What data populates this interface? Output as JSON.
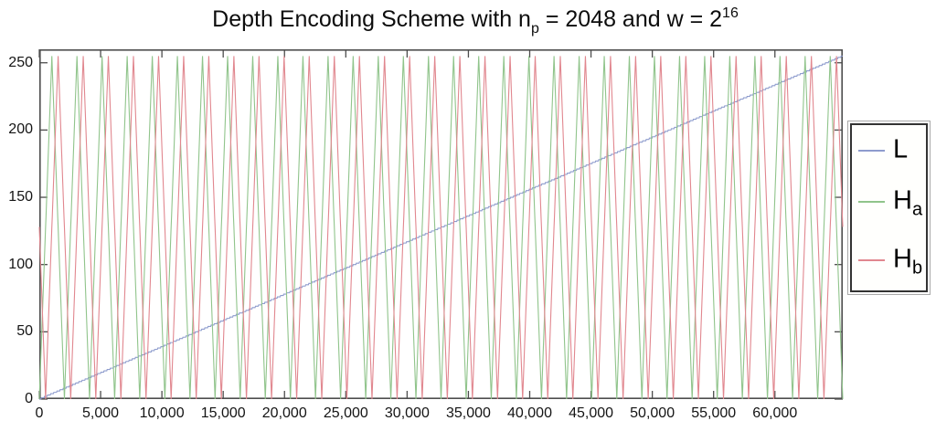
{
  "figure": {
    "title": {
      "pre": "Depth Encoding Scheme with n",
      "sub": "p",
      "mid": " = 2048 and w = 2",
      "sup": "16"
    }
  },
  "chart_data": {
    "type": "line",
    "title": "Depth Encoding Scheme with n_p = 2048 and w = 2^16",
    "xlabel": "",
    "ylabel": "",
    "xlim": [
      0,
      65535
    ],
    "ylim": [
      0,
      260
    ],
    "grid": false,
    "x_ticks": {
      "values": [
        0,
        5000,
        10000,
        15000,
        20000,
        25000,
        30000,
        35000,
        40000,
        45000,
        50000,
        55000,
        60000
      ],
      "labels": [
        "0",
        "5,000",
        "10,000",
        "15,000",
        "20,000",
        "25,000",
        "30,000",
        "35,000",
        "40,000",
        "45,000",
        "50,000",
        "55,000",
        "60,000"
      ]
    },
    "y_ticks": {
      "values": [
        0,
        50,
        100,
        150,
        200,
        250
      ],
      "labels": [
        "0",
        "50",
        "100",
        "150",
        "200",
        "250"
      ]
    },
    "series": [
      {
        "name": "L",
        "color": "#8e9ccd",
        "type": "linear-ramp",
        "description": "linear ramp, 8-bit quantized: L(d) = round(255*d/65535)",
        "min": 0,
        "max": 255
      },
      {
        "name": "Ha",
        "color": "#90c48b",
        "type": "triangle",
        "description": "triangle wave, period 2048, peaks at d = 1024 + 2048k, values 0-255",
        "period": 2048,
        "phase_shift": 0,
        "min": 0,
        "max": 255
      },
      {
        "name": "Hb",
        "color": "#e1878f",
        "type": "triangle",
        "description": "triangle wave, period 2048, shifted right by 512 (quarter period), values 0-255",
        "period": 2048,
        "phase_shift": 512,
        "min": 0,
        "max": 255
      }
    ],
    "legend": {
      "position": "outside-right",
      "entries": [
        {
          "label": "L",
          "sub": "",
          "color": "#8e9ccd"
        },
        {
          "label": "H",
          "sub": "a",
          "color": "#90c48b"
        },
        {
          "label": "H",
          "sub": "b",
          "color": "#e1878f"
        }
      ]
    },
    "axis_color": "#4d4d4d",
    "tick_direction": "in"
  }
}
